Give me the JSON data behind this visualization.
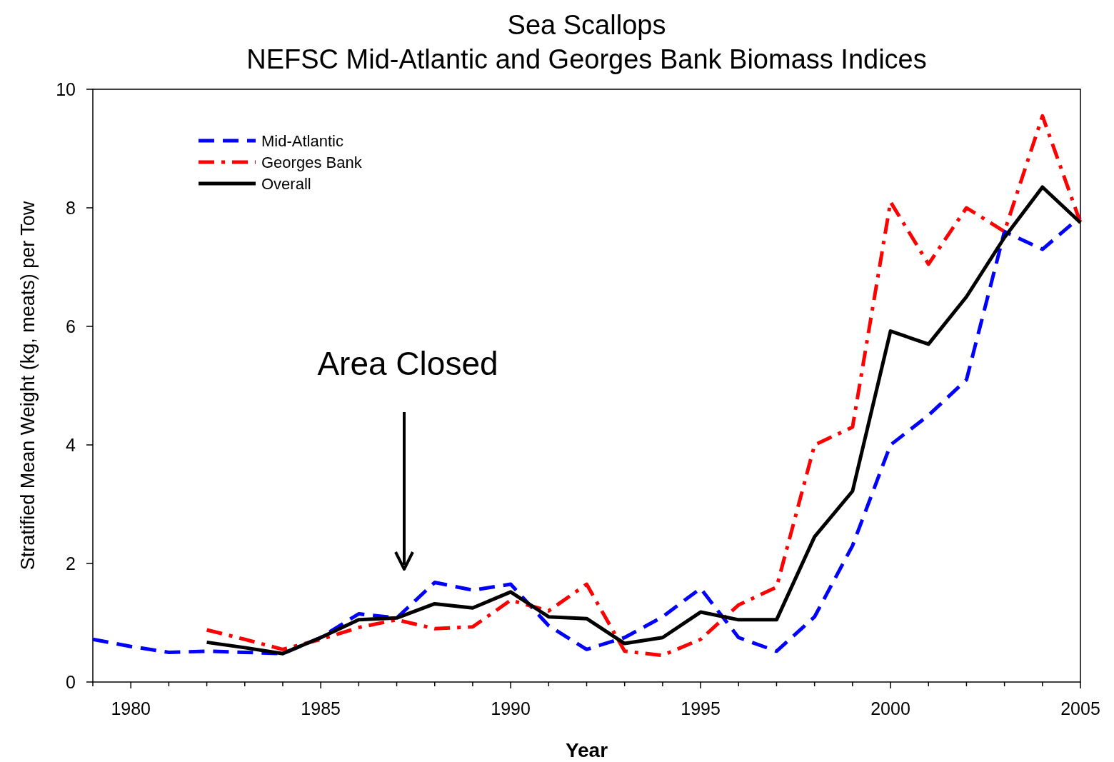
{
  "chart_data": {
    "type": "line",
    "title": "Sea Scallops",
    "subtitle": "NEFSC Mid-Atlantic and Georges Bank Biomass Indices",
    "xlabel": "Year",
    "ylabel": "Stratified Mean Weight (kg, meats) per Tow",
    "xlim": [
      1979,
      2005
    ],
    "ylim": [
      0,
      10
    ],
    "xticks": [
      {
        "value": 1979,
        "label": null
      },
      1980,
      {
        "value": 1981,
        "label": null
      },
      {
        "value": 1982,
        "label": null
      },
      {
        "value": 1983,
        "label": null
      },
      {
        "value": 1984,
        "label": null
      },
      1985,
      {
        "value": 1986,
        "label": null
      },
      {
        "value": 1987,
        "label": null
      },
      {
        "value": 1988,
        "label": null
      },
      {
        "value": 1989,
        "label": null
      },
      1990,
      {
        "value": 1991,
        "label": null
      },
      {
        "value": 1992,
        "label": null
      },
      {
        "value": 1993,
        "label": null
      },
      {
        "value": 1994,
        "label": null
      },
      1995,
      {
        "value": 1996,
        "label": null
      },
      {
        "value": 1997,
        "label": null
      },
      {
        "value": 1998,
        "label": null
      },
      {
        "value": 1999,
        "label": null
      },
      2000,
      {
        "value": 2001,
        "label": null
      },
      {
        "value": 2002,
        "label": null
      },
      {
        "value": 2003,
        "label": null
      },
      {
        "value": 2004,
        "label": null
      },
      2005
    ],
    "yticks": [
      0,
      2,
      4,
      6,
      8,
      10
    ],
    "grid": false,
    "legend": "top left",
    "marker": "none",
    "series": [
      {
        "name": "Mid-Atlantic",
        "color": "#0000ff",
        "line_style": "dashed",
        "x": [
          1979,
          1980,
          1981,
          1982,
          1983,
          1984,
          1985,
          1986,
          1987,
          1988,
          1989,
          1990,
          1991,
          1992,
          1993,
          1994,
          1995,
          1996,
          1997,
          1998,
          1999,
          2000,
          2001,
          2002,
          2003,
          2004,
          2005
        ],
        "values": [
          0.72,
          0.6,
          0.5,
          0.52,
          0.5,
          0.48,
          0.75,
          1.15,
          1.08,
          1.68,
          1.55,
          1.65,
          0.95,
          0.55,
          0.75,
          1.1,
          1.58,
          0.75,
          0.52,
          1.1,
          2.3,
          4.0,
          4.5,
          5.1,
          7.6,
          7.3,
          7.85
        ]
      },
      {
        "name": "Georges Bank",
        "color": "#ff0000",
        "line_style": "dashdot",
        "x": [
          1982,
          1983,
          1984,
          1985,
          1986,
          1987,
          1988,
          1989,
          1990,
          1991,
          1992,
          1993,
          1994,
          1995,
          1996,
          1997,
          1998,
          1999,
          2000,
          2001,
          2002,
          2003,
          2004,
          2005
        ],
        "values": [
          0.88,
          0.72,
          0.55,
          0.72,
          0.92,
          1.05,
          0.9,
          0.93,
          1.38,
          1.2,
          1.65,
          0.52,
          0.45,
          0.72,
          1.3,
          1.6,
          4.0,
          4.3,
          8.1,
          7.05,
          8.0,
          7.6,
          9.55,
          7.75
        ]
      },
      {
        "name": "Overall",
        "color": "#000000",
        "line_style": "solid",
        "x": [
          1982,
          1983,
          1984,
          1985,
          1986,
          1987,
          1988,
          1989,
          1990,
          1991,
          1992,
          1993,
          1994,
          1995,
          1996,
          1997,
          1998,
          1999,
          2000,
          2001,
          2002,
          2003,
          2004,
          2005
        ],
        "values": [
          0.67,
          0.58,
          0.48,
          0.75,
          1.05,
          1.08,
          1.32,
          1.25,
          1.52,
          1.1,
          1.07,
          0.65,
          0.75,
          1.18,
          1.05,
          1.05,
          2.45,
          3.22,
          5.92,
          5.7,
          6.5,
          7.5,
          8.35,
          7.75
        ]
      }
    ],
    "annotations": [
      "Area Closed"
    ]
  }
}
